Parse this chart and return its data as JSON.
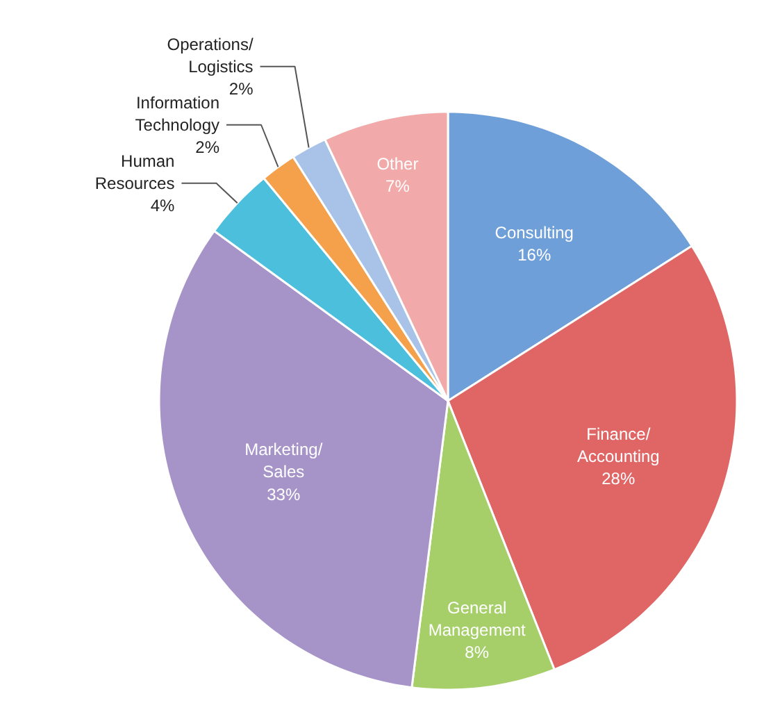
{
  "chart_data": {
    "type": "pie",
    "categories": [
      "Consulting",
      "Finance/Accounting",
      "General Management",
      "Marketing/Sales",
      "Human Resources",
      "Information Technology",
      "Operations/Logistics",
      "Other"
    ],
    "values": [
      16,
      28,
      8,
      33,
      4,
      2,
      2,
      7
    ],
    "value_labels": [
      "16%",
      "28%",
      "8%",
      "33%",
      "4%",
      "2%",
      "2%",
      "7%"
    ],
    "colors": [
      "#6f9fd8",
      "#e06666",
      "#a6cf6a",
      "#a694c9",
      "#4bbfdc",
      "#f5a04a",
      "#a9c3e8",
      "#f2a9a9"
    ]
  }
}
